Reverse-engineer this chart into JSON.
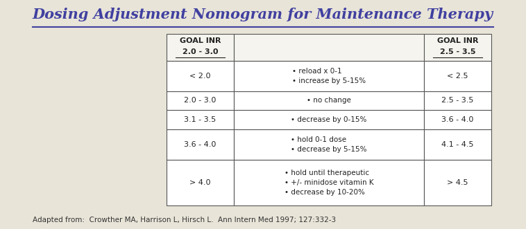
{
  "title": "Dosing Adjustment Nomogram for Maintenance Therapy",
  "title_color": "#4040A0",
  "background_color": "#E8E4D8",
  "border_color": "#555555",
  "text_color": "#333333",
  "footer": "Adapted from:  Crowther MA, Harrison L, Hirsch L.  Ann Intern Med 1997; 127:332-3",
  "col1_header_line1": "GOAL INR",
  "col1_header_line2": "2.0 - 3.0",
  "col3_header_line1": "GOAL INR",
  "col3_header_line2": "2.5 - 3.5",
  "rows": [
    {
      "col1": "< 2.0",
      "col2": "• reload x 0-1\n• increase by 5-15%",
      "col3": "< 2.5"
    },
    {
      "col1": "2.0 - 3.0",
      "col2": "• no change",
      "col3": "2.5 - 3.5"
    },
    {
      "col1": "3.1 - 3.5",
      "col2": "• decrease by 0-15%",
      "col3": "3.6 - 4.0"
    },
    {
      "col1": "3.6 - 4.0",
      "col2": "• hold 0-1 dose\n• decrease by 5-15%",
      "col3": "4.1 - 4.5"
    },
    {
      "col1": "> 4.0",
      "col2": "• hold until therapeutic\n• +/- minidose vitamin K\n• decrease by 10-20%",
      "col3": "> 4.5"
    }
  ]
}
